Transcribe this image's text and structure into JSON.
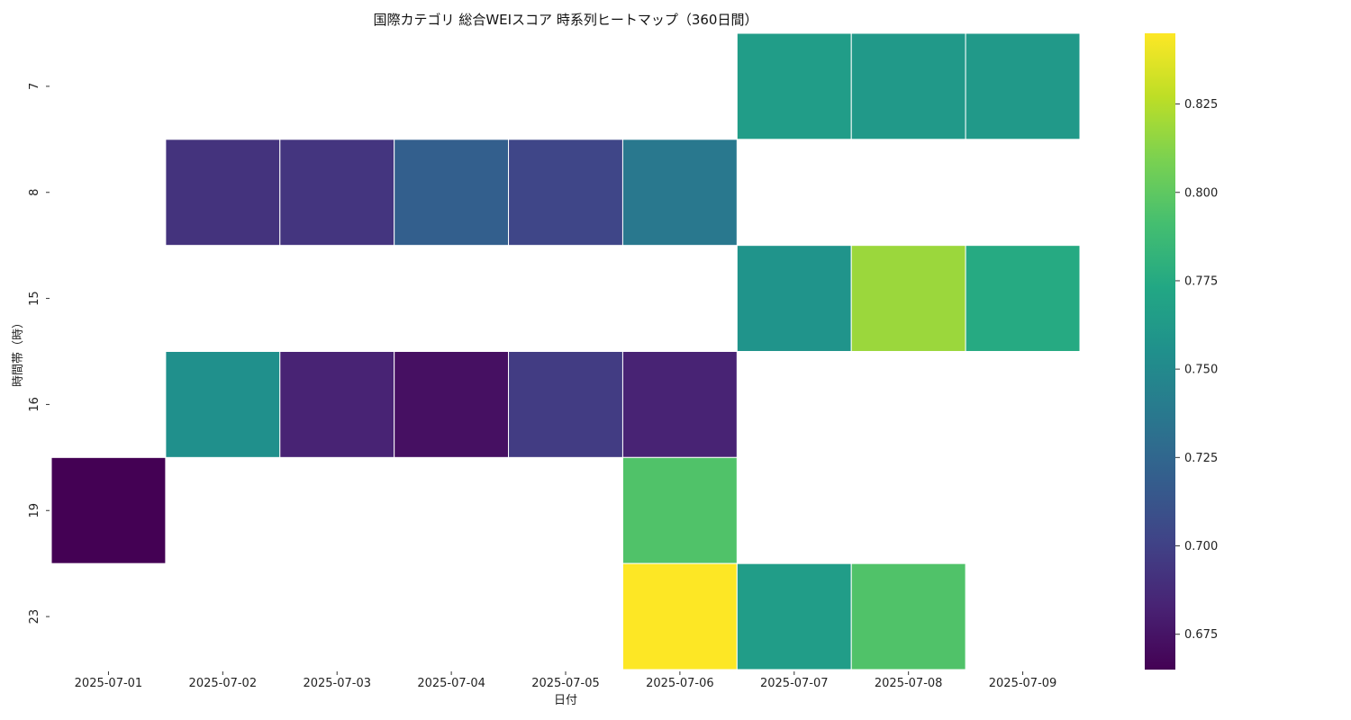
{
  "chart_data": {
    "type": "heatmap",
    "title": "国際カテゴリ 総合WEIスコア 時系列ヒートマップ（360日間）",
    "xlabel": "日付",
    "ylabel": "時間帯（時）",
    "x": [
      "2025-07-01",
      "2025-07-02",
      "2025-07-03",
      "2025-07-04",
      "2025-07-05",
      "2025-07-06",
      "2025-07-07",
      "2025-07-08",
      "2025-07-09"
    ],
    "y": [
      "7",
      "8",
      "15",
      "16",
      "19",
      "23"
    ],
    "values": [
      [
        null,
        null,
        null,
        null,
        null,
        null,
        0.765,
        0.762,
        0.762
      ],
      [
        null,
        0.692,
        0.693,
        0.72,
        0.703,
        0.737,
        null,
        null,
        null
      ],
      [
        null,
        null,
        null,
        null,
        null,
        null,
        0.758,
        0.818,
        0.775
      ],
      [
        null,
        0.755,
        0.683,
        0.673,
        0.697,
        0.683,
        null,
        null,
        null
      ],
      [
        0.665,
        null,
        null,
        null,
        null,
        0.795,
        null,
        null,
        null
      ],
      [
        null,
        null,
        null,
        null,
        null,
        0.845,
        0.765,
        0.795,
        null
      ]
    ],
    "colorbar": {
      "colormap": "viridis",
      "range": [
        0.665,
        0.845
      ],
      "ticks": [
        "0.675",
        "0.700",
        "0.725",
        "0.750",
        "0.775",
        "0.800",
        "0.825"
      ]
    },
    "grid": false,
    "legend": "right colorbar"
  }
}
